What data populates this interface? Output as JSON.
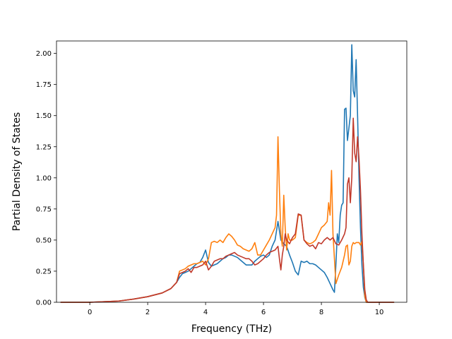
{
  "chart_data": {
    "type": "line",
    "title": "",
    "xlabel": "Frequency (THz)",
    "ylabel": "Partial Density of States",
    "xlim": [
      -1.15,
      10.95
    ],
    "ylim": [
      0.0,
      2.1
    ],
    "xticks": [
      0,
      2,
      4,
      6,
      8,
      10
    ],
    "xtick_labels": [
      "0",
      "2",
      "4",
      "6",
      "8",
      "10"
    ],
    "yticks": [
      0.0,
      0.25,
      0.5,
      0.75,
      1.0,
      1.25,
      1.5,
      1.75,
      2.0
    ],
    "ytick_labels": [
      "0.00",
      "0.25",
      "0.50",
      "0.75",
      "1.00",
      "1.25",
      "1.50",
      "1.75",
      "2.00"
    ],
    "grid": false,
    "legend": "none",
    "series": [
      {
        "color": "#1f77b4",
        "x": [
          -1.0,
          0.0,
          0.5,
          1.0,
          1.5,
          2.0,
          2.5,
          2.8,
          3.0,
          3.1,
          3.2,
          3.3,
          3.4,
          3.5,
          3.6,
          3.7,
          3.8,
          3.9,
          4.0,
          4.1,
          4.2,
          4.3,
          4.4,
          4.5,
          4.6,
          4.7,
          4.8,
          4.9,
          5.0,
          5.1,
          5.2,
          5.4,
          5.6,
          5.7,
          5.8,
          5.9,
          6.0,
          6.1,
          6.2,
          6.3,
          6.4,
          6.5,
          6.6,
          6.7,
          6.8,
          6.9,
          7.0,
          7.1,
          7.2,
          7.3,
          7.4,
          7.5,
          7.6,
          7.7,
          7.8,
          7.9,
          8.0,
          8.1,
          8.2,
          8.3,
          8.4,
          8.45,
          8.5,
          8.55,
          8.6,
          8.65,
          8.7,
          8.75,
          8.8,
          8.85,
          8.9,
          8.95,
          9.0,
          9.05,
          9.1,
          9.15,
          9.2,
          9.25,
          9.3,
          9.35,
          9.4,
          9.45,
          9.5,
          9.55,
          9.6,
          10.5
        ],
        "y": [
          0.0,
          0.0,
          0.005,
          0.01,
          0.025,
          0.045,
          0.075,
          0.11,
          0.16,
          0.2,
          0.23,
          0.24,
          0.25,
          0.27,
          0.29,
          0.31,
          0.32,
          0.36,
          0.42,
          0.32,
          0.29,
          0.3,
          0.31,
          0.33,
          0.35,
          0.36,
          0.38,
          0.38,
          0.37,
          0.36,
          0.34,
          0.3,
          0.3,
          0.33,
          0.35,
          0.37,
          0.38,
          0.36,
          0.38,
          0.45,
          0.5,
          0.65,
          0.5,
          0.47,
          0.45,
          0.38,
          0.32,
          0.25,
          0.22,
          0.33,
          0.32,
          0.33,
          0.31,
          0.31,
          0.3,
          0.28,
          0.26,
          0.24,
          0.2,
          0.15,
          0.1,
          0.08,
          0.3,
          0.55,
          0.48,
          0.7,
          0.78,
          0.8,
          1.55,
          1.56,
          1.3,
          1.4,
          1.5,
          2.07,
          1.7,
          1.65,
          1.95,
          1.5,
          1.0,
          0.6,
          0.3,
          0.12,
          0.04,
          0.0,
          0.0,
          0.0
        ]
      },
      {
        "color": "#ff7f0e",
        "x": [
          -1.0,
          0.0,
          0.5,
          1.0,
          1.5,
          2.0,
          2.5,
          2.8,
          3.0,
          3.1,
          3.2,
          3.3,
          3.4,
          3.5,
          3.6,
          3.7,
          3.8,
          3.9,
          4.0,
          4.1,
          4.2,
          4.3,
          4.4,
          4.5,
          4.6,
          4.7,
          4.8,
          4.9,
          5.0,
          5.1,
          5.2,
          5.3,
          5.4,
          5.5,
          5.6,
          5.7,
          5.8,
          5.9,
          6.0,
          6.1,
          6.2,
          6.3,
          6.4,
          6.45,
          6.5,
          6.55,
          6.6,
          6.65,
          6.7,
          6.75,
          6.8,
          6.85,
          6.9,
          7.0,
          7.1,
          7.2,
          7.3,
          7.4,
          7.5,
          7.6,
          7.7,
          7.8,
          7.9,
          8.0,
          8.1,
          8.2,
          8.25,
          8.3,
          8.35,
          8.4,
          8.45,
          8.5,
          8.6,
          8.7,
          8.8,
          8.85,
          8.9,
          8.95,
          9.0,
          9.05,
          9.1,
          9.15,
          9.2,
          9.3,
          9.35,
          9.4,
          9.45,
          9.5,
          9.55,
          9.6,
          10.5
        ],
        "y": [
          0.0,
          0.0,
          0.005,
          0.01,
          0.025,
          0.045,
          0.075,
          0.11,
          0.16,
          0.25,
          0.26,
          0.27,
          0.29,
          0.3,
          0.31,
          0.31,
          0.32,
          0.33,
          0.3,
          0.35,
          0.48,
          0.49,
          0.48,
          0.5,
          0.48,
          0.52,
          0.55,
          0.53,
          0.5,
          0.46,
          0.45,
          0.43,
          0.42,
          0.41,
          0.43,
          0.48,
          0.38,
          0.38,
          0.42,
          0.46,
          0.5,
          0.55,
          0.6,
          0.7,
          1.33,
          0.9,
          0.55,
          0.45,
          0.86,
          0.6,
          0.42,
          0.55,
          0.5,
          0.5,
          0.52,
          0.7,
          0.7,
          0.5,
          0.48,
          0.47,
          0.48,
          0.5,
          0.55,
          0.6,
          0.62,
          0.65,
          0.8,
          0.7,
          1.06,
          0.55,
          0.35,
          0.15,
          0.22,
          0.28,
          0.38,
          0.45,
          0.46,
          0.3,
          0.33,
          0.45,
          0.48,
          0.47,
          0.48,
          0.48,
          0.46,
          0.49,
          0.3,
          0.05,
          0.0,
          0.0,
          0.0
        ]
      },
      {
        "color": "#c0392b",
        "x": [
          -1.0,
          0.0,
          0.5,
          1.0,
          1.5,
          2.0,
          2.5,
          2.8,
          3.0,
          3.1,
          3.2,
          3.3,
          3.4,
          3.5,
          3.6,
          3.7,
          3.8,
          3.9,
          4.0,
          4.1,
          4.2,
          4.3,
          4.4,
          4.5,
          4.6,
          4.7,
          4.8,
          4.9,
          5.0,
          5.1,
          5.2,
          5.3,
          5.4,
          5.5,
          5.6,
          5.7,
          5.8,
          5.9,
          6.0,
          6.1,
          6.2,
          6.3,
          6.4,
          6.5,
          6.55,
          6.6,
          6.65,
          6.7,
          6.75,
          6.8,
          6.9,
          7.0,
          7.1,
          7.2,
          7.3,
          7.4,
          7.5,
          7.6,
          7.7,
          7.8,
          7.9,
          8.0,
          8.1,
          8.2,
          8.3,
          8.4,
          8.5,
          8.6,
          8.7,
          8.8,
          8.85,
          8.9,
          8.95,
          9.0,
          9.05,
          9.1,
          9.15,
          9.2,
          9.25,
          9.3,
          9.35,
          9.4,
          9.45,
          9.5,
          9.55,
          9.6,
          10.5
        ],
        "y": [
          0.0,
          0.0,
          0.005,
          0.01,
          0.025,
          0.045,
          0.075,
          0.11,
          0.16,
          0.23,
          0.24,
          0.25,
          0.27,
          0.24,
          0.28,
          0.28,
          0.29,
          0.3,
          0.33,
          0.26,
          0.29,
          0.33,
          0.34,
          0.35,
          0.35,
          0.37,
          0.38,
          0.39,
          0.4,
          0.38,
          0.37,
          0.36,
          0.35,
          0.35,
          0.33,
          0.3,
          0.31,
          0.33,
          0.35,
          0.38,
          0.4,
          0.41,
          0.42,
          0.45,
          0.35,
          0.26,
          0.38,
          0.45,
          0.55,
          0.5,
          0.47,
          0.52,
          0.55,
          0.71,
          0.7,
          0.5,
          0.47,
          0.45,
          0.46,
          0.43,
          0.48,
          0.47,
          0.5,
          0.52,
          0.5,
          0.52,
          0.47,
          0.46,
          0.5,
          0.55,
          0.6,
          0.95,
          1.0,
          0.8,
          1.0,
          1.48,
          1.2,
          1.13,
          1.33,
          1.15,
          0.9,
          0.55,
          0.3,
          0.1,
          0.02,
          0.0,
          0.0
        ]
      }
    ]
  }
}
